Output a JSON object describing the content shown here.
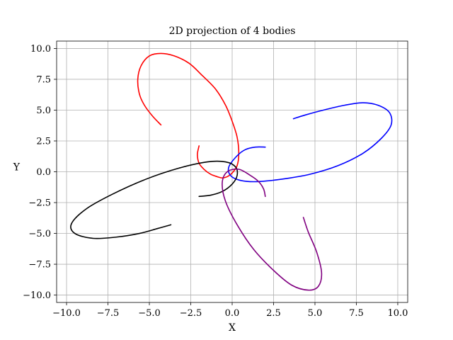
{
  "chart_data": {
    "type": "line",
    "title": "2D projection of 4 bodies",
    "xlabel": "X",
    "ylabel": "Y",
    "xlim": [
      -10.6,
      10.6
    ],
    "ylim": [
      -10.6,
      10.6
    ],
    "xticks": [
      -10.0,
      -7.5,
      -5.0,
      -2.5,
      0.0,
      2.5,
      5.0,
      7.5,
      10.0
    ],
    "xtick_labels": [
      "−10.0",
      "−7.5",
      "−5.0",
      "−2.5",
      "0.0",
      "2.5",
      "5.0",
      "7.5",
      "10.0"
    ],
    "yticks": [
      -10.0,
      -7.5,
      -5.0,
      -2.5,
      0.0,
      2.5,
      5.0,
      7.5,
      10.0
    ],
    "ytick_labels": [
      "−10.0",
      "−7.5",
      "−5.0",
      "−2.5",
      "0.0",
      "2.5",
      "5.0",
      "7.5",
      "10.0"
    ],
    "grid": true,
    "series": [
      {
        "color": "#ff0000",
        "x": [
          -4.3,
          -4.8,
          -5.3,
          -5.6,
          -5.7,
          -5.5,
          -5.0,
          -4.3,
          -3.5,
          -2.6,
          -1.8,
          -1.0,
          -0.4,
          0.0,
          0.3,
          0.4,
          0.3,
          0.0,
          -0.3,
          -0.6,
          -0.9,
          -1.3,
          -1.7,
          -2.0,
          -2.1,
          -2.0
        ],
        "y": [
          3.8,
          4.5,
          5.4,
          6.3,
          7.5,
          8.6,
          9.4,
          9.6,
          9.4,
          8.8,
          7.8,
          6.7,
          5.4,
          4.1,
          2.8,
          1.5,
          0.5,
          -0.1,
          -0.4,
          -0.5,
          -0.4,
          -0.2,
          0.2,
          0.7,
          1.4,
          2.1
        ]
      },
      {
        "color": "#0000ff",
        "x": [
          2.0,
          1.4,
          0.8,
          0.3,
          -0.2,
          -0.1,
          0.5,
          1.5,
          3.0,
          4.7,
          6.4,
          7.9,
          9.0,
          9.6,
          9.5,
          8.8,
          7.9,
          6.8,
          5.5,
          4.4,
          3.7
        ],
        "y": [
          2.0,
          2.0,
          1.8,
          1.3,
          0.4,
          -0.3,
          -0.7,
          -0.8,
          -0.6,
          -0.2,
          0.5,
          1.5,
          2.7,
          3.8,
          4.8,
          5.4,
          5.6,
          5.4,
          5.0,
          4.6,
          4.3
        ]
      },
      {
        "color": "#000000",
        "x": [
          -2.0,
          -1.3,
          -0.6,
          0.0,
          0.3,
          0.2,
          -0.4,
          -1.5,
          -3.2,
          -5.2,
          -7.2,
          -8.8,
          -9.7,
          -9.5,
          -8.4,
          -7.0,
          -5.6,
          -4.5,
          -3.7
        ],
        "y": [
          -2.0,
          -1.9,
          -1.6,
          -1.0,
          -0.3,
          0.4,
          0.8,
          0.8,
          0.3,
          -0.6,
          -1.8,
          -3.0,
          -4.2,
          -5.0,
          -5.4,
          -5.3,
          -5.0,
          -4.6,
          -4.3
        ]
      },
      {
        "color": "#800080",
        "x": [
          2.0,
          1.9,
          1.6,
          1.1,
          0.4,
          -0.3,
          -0.6,
          -0.4,
          0.3,
          1.3,
          2.5,
          3.6,
          4.6,
          5.2,
          5.4,
          5.1,
          4.6,
          4.3
        ],
        "y": [
          -2.0,
          -1.4,
          -0.8,
          -0.3,
          0.2,
          0.0,
          -0.9,
          -2.4,
          -4.3,
          -6.3,
          -8.0,
          -9.2,
          -9.6,
          -9.3,
          -8.2,
          -6.5,
          -4.9,
          -3.7
        ]
      }
    ]
  }
}
